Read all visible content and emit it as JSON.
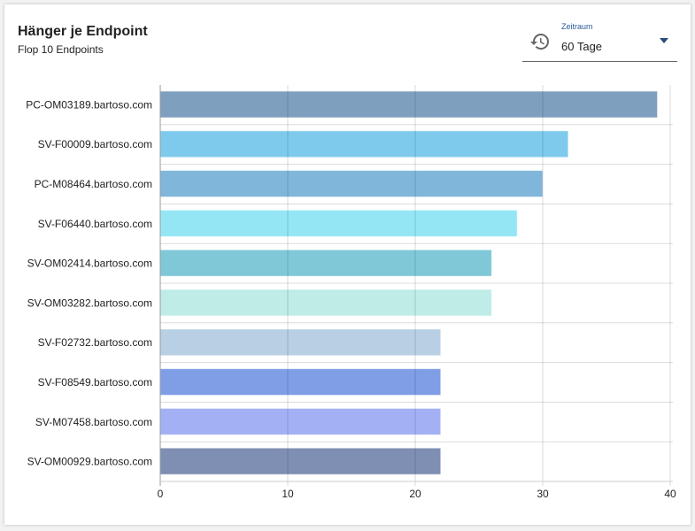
{
  "header": {
    "title": "Hänger je Endpoint",
    "subtitle": "Flop 10 Endpoints"
  },
  "timerange": {
    "label": "Zeitraum",
    "value": "60 Tage",
    "icon": "history-icon"
  },
  "chart_data": {
    "type": "bar",
    "orientation": "horizontal",
    "title": "Hänger je Endpoint",
    "subtitle": "Flop 10 Endpoints",
    "xlabel": "",
    "ylabel": "",
    "xlim": [
      0,
      40
    ],
    "xticks": [
      0,
      10,
      20,
      30,
      40
    ],
    "grid": true,
    "categories": [
      "PC-OM03189.bartoso.com",
      "SV-F00009.bartoso.com",
      "PC-M08464.bartoso.com",
      "SV-F06440.bartoso.com",
      "SV-OM02414.bartoso.com",
      "SV-OM03282.bartoso.com",
      "SV-F02732.bartoso.com",
      "SV-F08549.bartoso.com",
      "SV-M07458.bartoso.com",
      "SV-OM00929.bartoso.com"
    ],
    "values": [
      39,
      32,
      30,
      28,
      26,
      26,
      22,
      22,
      22,
      22
    ],
    "colors": [
      "#7f9fbf",
      "#7ecaec",
      "#7fb6da",
      "#94e6f4",
      "#80c8d8",
      "#bfece6",
      "#b8cfe4",
      "#809ee6",
      "#a3b1f4",
      "#7f8fb3"
    ]
  }
}
